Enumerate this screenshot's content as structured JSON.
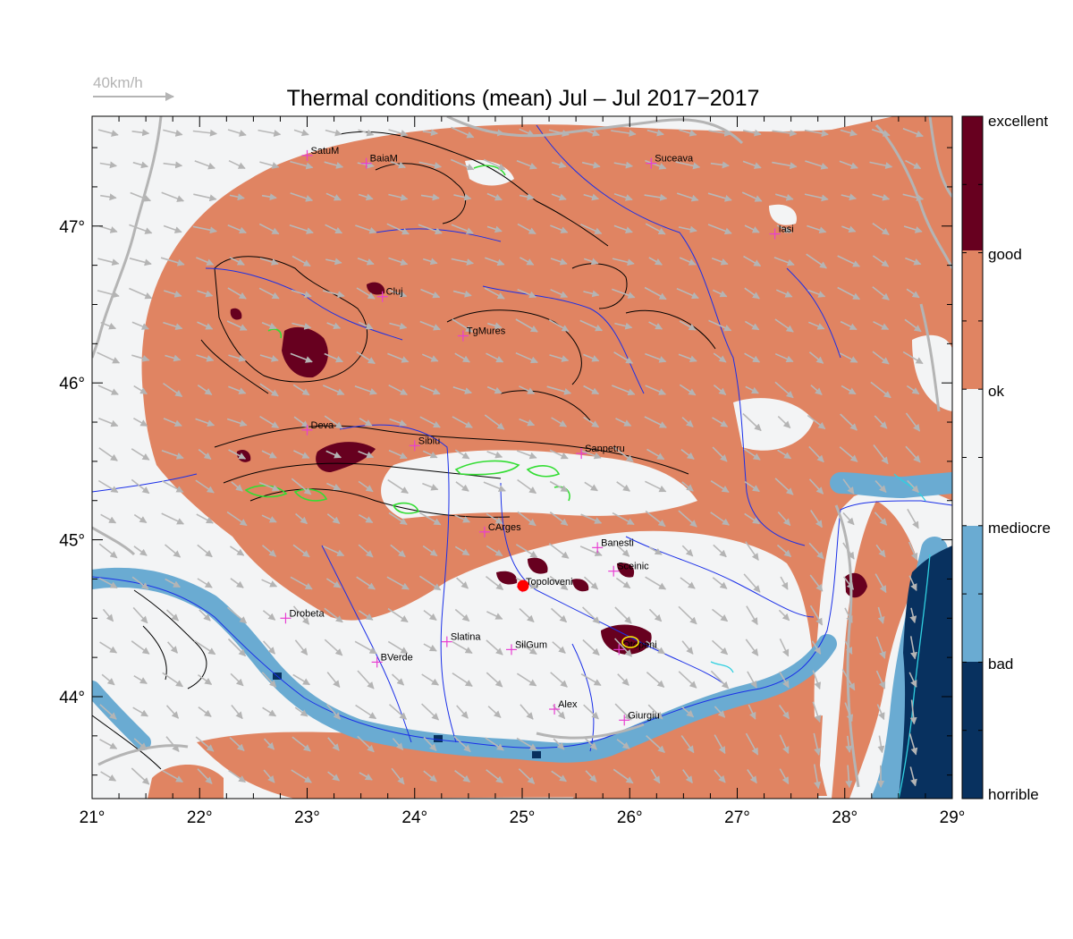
{
  "title": "Thermal conditions (mean) Jul – Jul  2017−2017",
  "wind_scale": {
    "label": "40km/h",
    "speed_kmh": 40
  },
  "map": {
    "lon_range": [
      21,
      29
    ],
    "lat_range": [
      43.35,
      47.7
    ],
    "x_ticks": [
      "21°",
      "22°",
      "23°",
      "24°",
      "25°",
      "26°",
      "27°",
      "28°",
      "29°"
    ],
    "y_ticks": [
      "44°",
      "45°",
      "46°",
      "47°"
    ]
  },
  "legend": {
    "classes": [
      {
        "label": "excellent",
        "color": "#67001f"
      },
      {
        "label": "good",
        "color": "#e08462"
      },
      {
        "label": "ok",
        "color": "#f3f4f5"
      },
      {
        "label": "mediocre",
        "color": "#6aabd2"
      },
      {
        "label": "bad",
        "color": "#08315f"
      },
      {
        "label": "horrible",
        "color": "#08315f"
      }
    ]
  },
  "cities": [
    {
      "name": "SatuM",
      "lon": 23.0,
      "lat": 47.45
    },
    {
      "name": "BaiaM",
      "lon": 23.55,
      "lat": 47.4
    },
    {
      "name": "Suceava",
      "lon": 26.2,
      "lat": 47.4
    },
    {
      "name": "Iasi",
      "lon": 27.35,
      "lat": 46.95
    },
    {
      "name": "Cluj",
      "lon": 23.7,
      "lat": 46.55
    },
    {
      "name": "TgMures",
      "lon": 24.45,
      "lat": 46.3
    },
    {
      "name": "Deva",
      "lon": 23.0,
      "lat": 45.7
    },
    {
      "name": "Sibiu",
      "lon": 24.0,
      "lat": 45.6
    },
    {
      "name": "Sanpetru",
      "lon": 25.55,
      "lat": 45.55
    },
    {
      "name": "CArges",
      "lon": 24.65,
      "lat": 45.05
    },
    {
      "name": "Banesti",
      "lon": 25.7,
      "lat": 44.95
    },
    {
      "name": "Sceinic",
      "lon": 25.85,
      "lat": 44.8
    },
    {
      "name": "Topoloveni",
      "lon": 25.0,
      "lat": 44.7
    },
    {
      "name": "Drobeta",
      "lon": 22.8,
      "lat": 44.5
    },
    {
      "name": "Slatina",
      "lon": 24.3,
      "lat": 44.35
    },
    {
      "name": "SilGum",
      "lon": 24.9,
      "lat": 44.3
    },
    {
      "name": "Otopeni",
      "lon": 25.9,
      "lat": 44.3
    },
    {
      "name": "BVerde",
      "lon": 23.65,
      "lat": 44.22
    },
    {
      "name": "Alex",
      "lon": 25.3,
      "lat": 43.92
    },
    {
      "name": "Giurgiu",
      "lon": 25.95,
      "lat": 43.85
    }
  ],
  "colors": {
    "city_marker": "#e83ed2",
    "highlight_marker": "#ff0000"
  }
}
